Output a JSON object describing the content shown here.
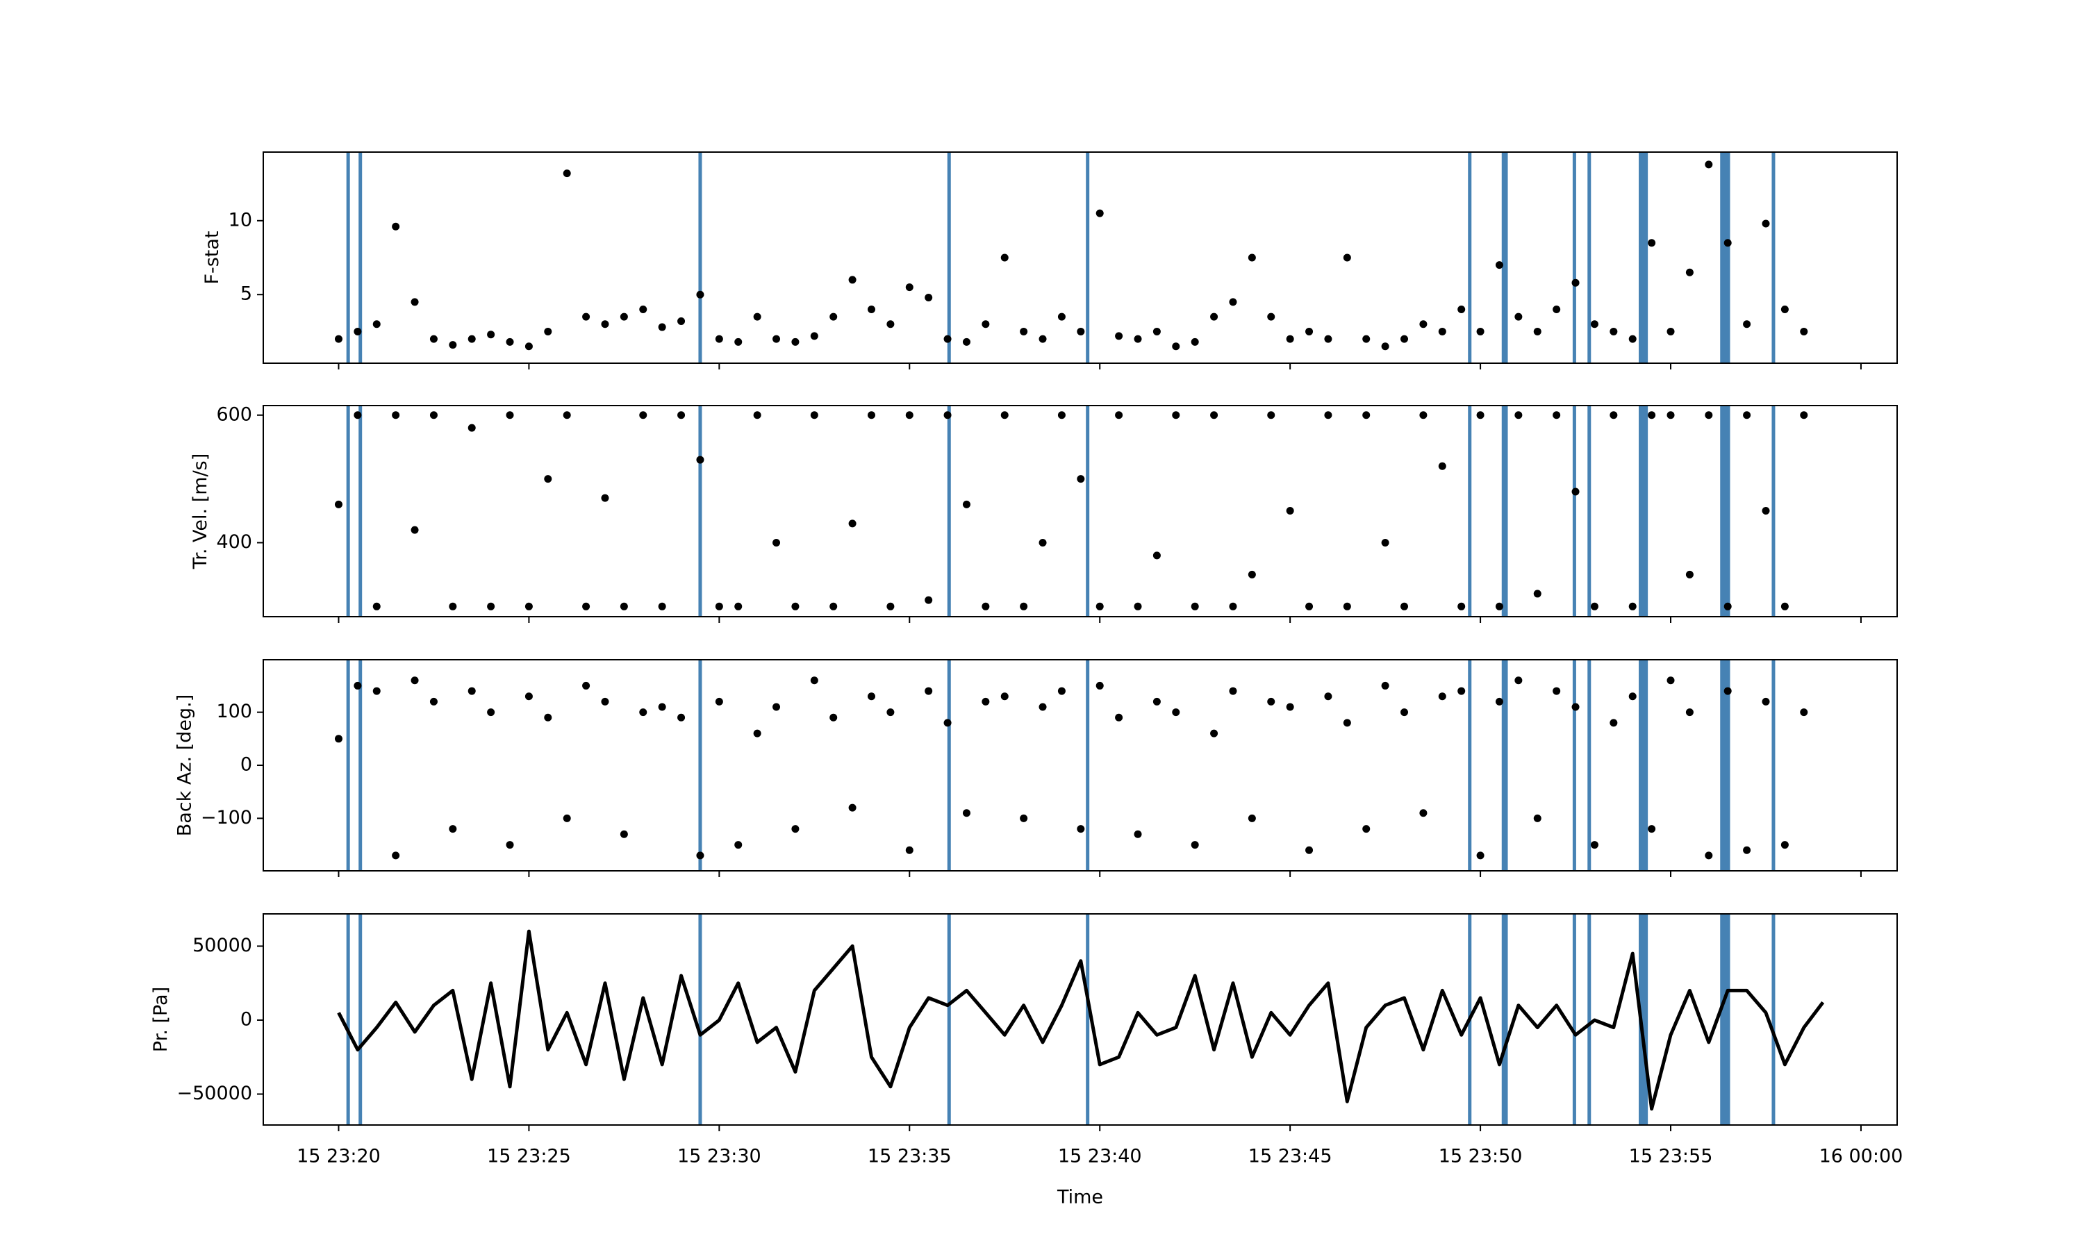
{
  "chart_data": [
    {
      "type": "scatter",
      "ylabel": "F-stat",
      "color": "#000000",
      "xlim": [
        18.02,
        60.95
      ],
      "xticks": [
        20,
        25,
        30,
        35,
        40,
        45,
        50,
        55,
        60
      ],
      "ylim": [
        0.36,
        14.64
      ],
      "yticks": [
        5,
        10
      ],
      "x": [
        20,
        20.5,
        21,
        21.5,
        22,
        22.5,
        23,
        23.5,
        24,
        24.5,
        25,
        25.5,
        26,
        26.5,
        27,
        27.5,
        28,
        28.5,
        29,
        29.5,
        30,
        30.5,
        31,
        31.5,
        32,
        32.5,
        33,
        33.5,
        34,
        34.5,
        35,
        35.5,
        36,
        36.5,
        37,
        37.5,
        38,
        38.5,
        39,
        39.5,
        40,
        40.5,
        41,
        41.5,
        42,
        42.5,
        43,
        43.5,
        44,
        44.5,
        45,
        45.5,
        46,
        46.5,
        47,
        47.5,
        48,
        48.5,
        49,
        49.5,
        50,
        50.5,
        51,
        51.5,
        52,
        52.5,
        53,
        53.5,
        54,
        54.5,
        55,
        55.5,
        56,
        56.5,
        57,
        57.5,
        58,
        58.5
      ],
      "values": [
        2,
        2.5,
        3,
        9.6,
        4.5,
        2,
        1.6,
        2,
        2.3,
        1.8,
        1.5,
        2.5,
        13.2,
        3.5,
        3,
        3.5,
        4,
        2.8,
        3.2,
        5,
        2,
        1.8,
        3.5,
        2,
        1.8,
        2.2,
        3.5,
        6,
        4,
        3,
        5.5,
        4.8,
        2,
        1.8,
        3,
        7.5,
        2.5,
        2,
        3.5,
        2.5,
        10.5,
        2.2,
        2,
        2.5,
        1.5,
        1.8,
        3.5,
        4.5,
        7.5,
        3.5,
        2,
        2.5,
        2,
        7.5,
        2,
        1.5,
        2,
        3,
        2.5,
        4,
        2.5,
        7,
        3.5,
        2.5,
        4,
        5.8,
        3,
        2.5,
        2,
        8.5,
        2.5,
        6.5,
        13.8,
        8.5,
        3,
        9.8,
        4,
        2.5
      ]
    },
    {
      "type": "scatter",
      "ylabel": "Tr. Vel. [m/s]",
      "color": "#000000",
      "xlim": [
        18.02,
        60.95
      ],
      "xticks": [
        20,
        25,
        30,
        35,
        40,
        45,
        50,
        55,
        60
      ],
      "ylim": [
        284,
        615
      ],
      "yticks": [
        400,
        600
      ],
      "x": [
        20,
        20.5,
        21,
        21.5,
        22,
        22.5,
        23,
        23.5,
        24,
        24.5,
        25,
        25.5,
        26,
        26.5,
        27,
        27.5,
        28,
        28.5,
        29,
        29.5,
        30,
        30.5,
        31,
        31.5,
        32,
        32.5,
        33,
        33.5,
        34,
        34.5,
        35,
        35.5,
        36,
        36.5,
        37,
        37.5,
        38,
        38.5,
        39,
        39.5,
        40,
        40.5,
        41,
        41.5,
        42,
        42.5,
        43,
        43.5,
        44,
        44.5,
        45,
        45.5,
        46,
        46.5,
        47,
        47.5,
        48,
        48.5,
        49,
        49.5,
        50,
        50.5,
        51,
        51.5,
        52,
        52.5,
        53,
        53.5,
        54,
        54.5,
        55,
        55.5,
        56,
        56.5,
        57,
        57.5,
        58,
        58.5
      ],
      "values": [
        460,
        600,
        300,
        600,
        420,
        600,
        300,
        580,
        300,
        600,
        300,
        500,
        600,
        300,
        470,
        300,
        600,
        300,
        600,
        530,
        300,
        300,
        600,
        400,
        300,
        600,
        300,
        430,
        600,
        300,
        600,
        310,
        600,
        460,
        300,
        600,
        300,
        400,
        600,
        500,
        300,
        600,
        300,
        380,
        600,
        300,
        600,
        300,
        350,
        600,
        450,
        300,
        600,
        300,
        600,
        400,
        300,
        600,
        520,
        300,
        600,
        300,
        600,
        320,
        600,
        480,
        300,
        600,
        300,
        600,
        600,
        350,
        600,
        300,
        600,
        450,
        300,
        600
      ]
    },
    {
      "type": "scatter",
      "ylabel": "Back Az. [deg.]",
      "color": "#000000",
      "xlim": [
        18.02,
        60.95
      ],
      "xticks": [
        20,
        25,
        30,
        35,
        40,
        45,
        50,
        55,
        60
      ],
      "ylim": [
        -199,
        199
      ],
      "yticks": [
        {
          "value": -100,
          "label": "−100"
        },
        0,
        100
      ],
      "x": [
        20,
        20.5,
        21,
        21.5,
        22,
        22.5,
        23,
        23.5,
        24,
        24.5,
        25,
        25.5,
        26,
        26.5,
        27,
        27.5,
        28,
        28.5,
        29,
        29.5,
        30,
        30.5,
        31,
        31.5,
        32,
        32.5,
        33,
        33.5,
        34,
        34.5,
        35,
        35.5,
        36,
        36.5,
        37,
        37.5,
        38,
        38.5,
        39,
        39.5,
        40,
        40.5,
        41,
        41.5,
        42,
        42.5,
        43,
        43.5,
        44,
        44.5,
        45,
        45.5,
        46,
        46.5,
        47,
        47.5,
        48,
        48.5,
        49,
        49.5,
        50,
        50.5,
        51,
        51.5,
        52,
        52.5,
        53,
        53.5,
        54,
        54.5,
        55,
        55.5,
        56,
        56.5,
        57,
        57.5,
        58,
        58.5
      ],
      "values": [
        50,
        150,
        140,
        -170,
        160,
        120,
        -120,
        140,
        100,
        -150,
        130,
        90,
        -100,
        150,
        120,
        -130,
        100,
        110,
        90,
        -170,
        120,
        -150,
        60,
        110,
        -120,
        160,
        90,
        -80,
        130,
        100,
        -160,
        140,
        80,
        -90,
        120,
        130,
        -100,
        110,
        140,
        -120,
        150,
        90,
        -130,
        120,
        100,
        -150,
        60,
        140,
        -100,
        120,
        110,
        -160,
        130,
        80,
        -120,
        150,
        100,
        -90,
        130,
        140,
        -170,
        120,
        160,
        -100,
        140,
        110,
        -150,
        80,
        130,
        -120,
        160,
        100,
        -170,
        140,
        -160,
        120,
        -150,
        100
      ]
    },
    {
      "type": "line",
      "ylabel": "Pr. [Pa]",
      "xlabel": "Time",
      "color": "#000000",
      "xlim": [
        18.02,
        60.95
      ],
      "xticks": [
        {
          "value": 20,
          "label": "15 23:20"
        },
        {
          "value": 25,
          "label": "15 23:25"
        },
        {
          "value": 30,
          "label": "15 23:30"
        },
        {
          "value": 35,
          "label": "15 23:35"
        },
        {
          "value": 40,
          "label": "15 23:40"
        },
        {
          "value": 45,
          "label": "15 23:45"
        },
        {
          "value": 50,
          "label": "15 23:50"
        },
        {
          "value": 55,
          "label": "15 23:55"
        },
        {
          "value": 60,
          "label": "16 00:00"
        }
      ],
      "ylim": [
        -70900,
        71800
      ],
      "yticks": [
        {
          "value": -50000,
          "label": "−50000"
        },
        0,
        50000
      ],
      "x": [
        20,
        20.5,
        21,
        21.5,
        22,
        22.5,
        23,
        23.5,
        24,
        24.5,
        25,
        25.5,
        26,
        26.5,
        27,
        27.5,
        28,
        28.5,
        29,
        29.5,
        30,
        30.5,
        31,
        31.5,
        32,
        32.5,
        33,
        33.5,
        34,
        34.5,
        35,
        35.5,
        36,
        36.5,
        37,
        37.5,
        38,
        38.5,
        39,
        39.5,
        40,
        40.5,
        41,
        41.5,
        42,
        42.5,
        43,
        43.5,
        44,
        44.5,
        45,
        45.5,
        46,
        46.5,
        47,
        47.5,
        48,
        48.5,
        49,
        49.5,
        50,
        50.5,
        51,
        51.5,
        52,
        52.5,
        53,
        53.5,
        54,
        54.5,
        55,
        55.5,
        56,
        56.5,
        57,
        57.5,
        58,
        58.5,
        59
      ],
      "values": [
        5000,
        -20000,
        -5000,
        12000,
        -8000,
        10000,
        20000,
        -40000,
        25000,
        -45000,
        60000,
        -20000,
        5000,
        -30000,
        25000,
        -40000,
        15000,
        -30000,
        30000,
        -10000,
        0,
        25000,
        -15000,
        -5000,
        -35000,
        20000,
        35000,
        50000,
        -25000,
        -45000,
        -5000,
        15000,
        10000,
        20000,
        5000,
        -10000,
        10000,
        -15000,
        10000,
        40000,
        -30000,
        -25000,
        5000,
        -10000,
        -5000,
        30000,
        -20000,
        25000,
        -25000,
        5000,
        -10000,
        10000,
        25000,
        -55000,
        -5000,
        10000,
        15000,
        -20000,
        20000,
        -10000,
        15000,
        -30000,
        10000,
        -5000,
        10000,
        -10000,
        0,
        -5000,
        45000,
        -60000,
        -10000,
        20000,
        -15000,
        20000,
        20000,
        5000,
        -30000,
        -5000,
        12000
      ]
    }
  ],
  "detections": [
    [
      20.22,
      20.28
    ],
    [
      20.54,
      20.6
    ],
    [
      29.47,
      29.53
    ],
    [
      36.01,
      36.07
    ],
    [
      39.65,
      39.71
    ],
    [
      49.69,
      49.75
    ],
    [
      50.56,
      50.72
    ],
    [
      52.44,
      52.5
    ],
    [
      52.83,
      52.89
    ],
    [
      54.16,
      54.4
    ],
    [
      56.3,
      56.56
    ],
    [
      57.67,
      57.73
    ]
  ],
  "detection_color": "#4682b4"
}
